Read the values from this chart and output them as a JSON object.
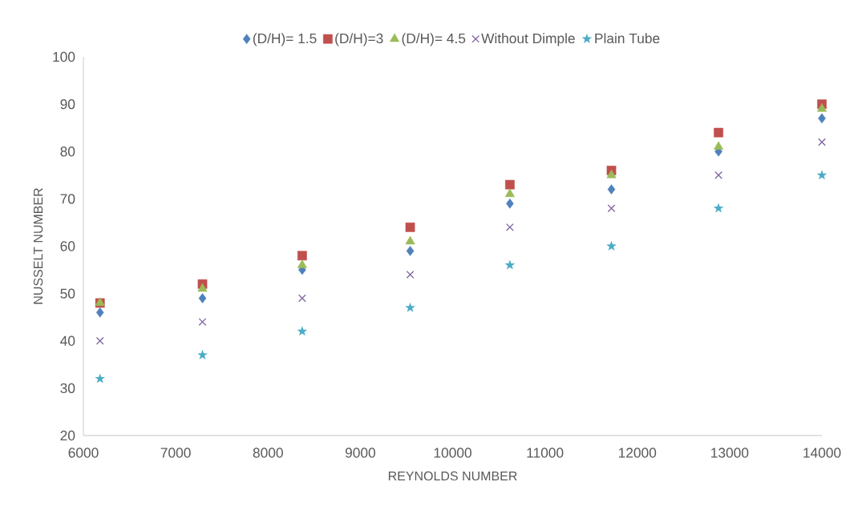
{
  "chart_data": {
    "type": "scatter",
    "xlabel": "REYNOLDS NUMBER",
    "ylabel": "NUSSELT NUMBER",
    "x": [
      6180,
      7290,
      8370,
      9540,
      10620,
      11720,
      12880,
      14000
    ],
    "xlim": [
      6000,
      14000
    ],
    "xticks": [
      6000,
      7000,
      8000,
      9000,
      10000,
      11000,
      12000,
      13000,
      14000
    ],
    "ylim": [
      20,
      100
    ],
    "yticks": [
      20,
      30,
      40,
      50,
      60,
      70,
      80,
      90,
      100
    ],
    "grid": false,
    "legend": "top",
    "series": [
      {
        "name": "(D/H)= 1.5",
        "color": "#4f81bd",
        "marker": "diamond",
        "values": [
          46,
          49,
          55,
          59,
          69,
          72,
          80,
          87
        ]
      },
      {
        "name": "(D/H)=3",
        "color": "#c0504d",
        "marker": "square",
        "values": [
          48,
          52,
          58,
          64,
          73,
          76,
          84,
          90
        ]
      },
      {
        "name": "(D/H)= 4.5",
        "color": "#9bbb59",
        "marker": "triangle",
        "values": [
          48,
          51,
          56,
          61,
          71,
          75,
          81,
          89
        ]
      },
      {
        "name": "Without Dimple",
        "color": "#8064a2",
        "marker": "cross",
        "values": [
          40,
          44,
          49,
          54,
          64,
          68,
          75,
          82
        ]
      },
      {
        "name": "Plain Tube",
        "color": "#4bacc6",
        "marker": "star",
        "values": [
          32,
          37,
          42,
          47,
          56,
          60,
          68,
          75
        ]
      }
    ]
  }
}
